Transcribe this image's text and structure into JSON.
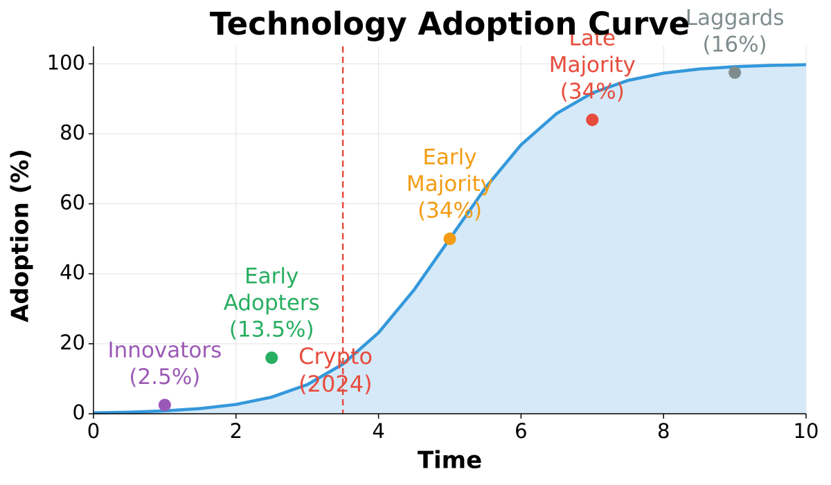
{
  "chart_data": {
    "type": "line",
    "title": "Technology Adoption Curve",
    "xlabel": "Time",
    "ylabel": "Adoption (%)",
    "x": [
      0,
      0.5,
      1,
      1.5,
      2,
      2.5,
      3,
      3.5,
      4,
      4.5,
      5,
      5.5,
      6,
      6.5,
      7,
      7.5,
      8,
      8.5,
      9,
      9.5,
      10
    ],
    "series": [
      {
        "color": "#3498db",
        "fill": "#d6e9f8",
        "values": [
          0.25,
          0.45,
          0.82,
          1.48,
          2.66,
          4.74,
          8.32,
          14.19,
          23.15,
          35.43,
          50,
          64.57,
          76.85,
          85.81,
          91.68,
          95.26,
          97.34,
          98.52,
          99.18,
          99.55,
          99.75
        ]
      }
    ],
    "xlim": [
      0,
      10
    ],
    "ylim": [
      0,
      105
    ],
    "xticks": [
      0,
      2,
      4,
      6,
      8,
      10
    ],
    "yticks": [
      0,
      20,
      40,
      60,
      80,
      100
    ],
    "grid": true,
    "points": [
      {
        "x": 1,
        "y": 2.5,
        "color": "#9b59b6",
        "label": [
          "Innovators",
          "(2.5%)"
        ]
      },
      {
        "x": 2.5,
        "y": 16,
        "color": "#27ae60",
        "label": [
          "Early",
          "Adopters",
          "(13.5%)"
        ]
      },
      {
        "x": 5,
        "y": 50,
        "color": "#f39c12",
        "label": [
          "Early",
          "Majority",
          "(34%)"
        ]
      },
      {
        "x": 7,
        "y": 84,
        "color": "#e74c3c",
        "label": [
          "Late",
          "Majority",
          "(34%)"
        ]
      },
      {
        "x": 9,
        "y": 97.5,
        "color": "#7f8c8d",
        "label": [
          "Laggards",
          "(16%)"
        ]
      }
    ],
    "vline": {
      "x": 3.5,
      "color": "#e74c3c",
      "label": [
        "Crypto",
        "(2024)"
      ]
    }
  }
}
